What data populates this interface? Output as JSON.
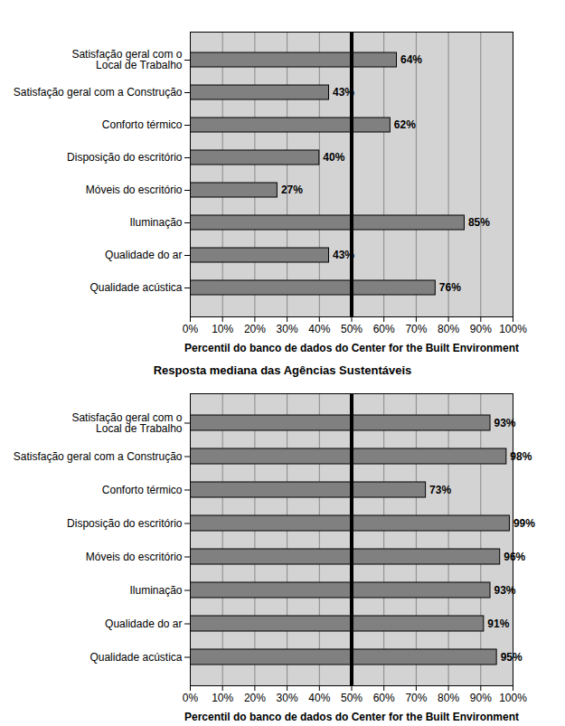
{
  "chart_data": [
    {
      "type": "bar",
      "orientation": "horizontal",
      "categories": [
        "Satisfação geral com o\nLocal de Trabalho",
        "Satisfação geral com a Construção",
        "Conforto térmico",
        "Disposição do escritório",
        "Móveis do escritório",
        "Iluminação",
        "Qualidade do ar",
        "Qualidade acústica"
      ],
      "values": [
        64,
        43,
        62,
        40,
        27,
        85,
        43,
        76
      ],
      "value_labels": [
        "64%",
        "43%",
        "62%",
        "40%",
        "27%",
        "85%",
        "43%",
        "76%"
      ],
      "data_labels": true,
      "color": "#808080",
      "x_label": "Percentil do banco de dados do Center for the Built Environment",
      "xlim": [
        0,
        100
      ],
      "xticks": [
        {
          "value": 0,
          "label": "0%"
        },
        {
          "value": 10,
          "label": "10%"
        },
        {
          "value": 20,
          "label": "20%"
        },
        {
          "value": 30,
          "label": "30%"
        },
        {
          "value": 40,
          "label": "40%"
        },
        {
          "value": 50,
          "label": "50%"
        },
        {
          "value": 60,
          "label": "60%"
        },
        {
          "value": 70,
          "label": "70%"
        },
        {
          "value": 80,
          "label": "80%"
        },
        {
          "value": 90,
          "label": "90%"
        },
        {
          "value": 100,
          "label": "100%"
        }
      ],
      "grid": true,
      "reference_line": 50
    },
    {
      "type": "bar",
      "orientation": "horizontal",
      "title": "Resposta mediana das Agências Sustentáveis",
      "categories": [
        "Satisfação geral com o\nLocal de Trabalho",
        "Satisfação geral com a Construção",
        "Conforto térmico",
        "Disposição do escritório",
        "Móveis do escritório",
        "Iluminação",
        "Qualidade do ar",
        "Qualidade acústica"
      ],
      "values": [
        93,
        98,
        73,
        99,
        96,
        93,
        91,
        95
      ],
      "value_labels": [
        "93%",
        "98%",
        "73%",
        "99%",
        "96%",
        "93%",
        "91%",
        "95%"
      ],
      "data_labels": true,
      "color": "#808080",
      "x_label": "Percentil do banco de dados do Center for the Built Environment",
      "xlim": [
        0,
        100
      ],
      "xticks": [
        {
          "value": 0,
          "label": "0%"
        },
        {
          "value": 10,
          "label": "10%"
        },
        {
          "value": 20,
          "label": "20%"
        },
        {
          "value": 30,
          "label": "30%"
        },
        {
          "value": 40,
          "label": "40%"
        },
        {
          "value": 50,
          "label": "50%"
        },
        {
          "value": 60,
          "label": "60%"
        },
        {
          "value": 70,
          "label": "70%"
        },
        {
          "value": 80,
          "label": "80%"
        },
        {
          "value": 90,
          "label": "90%"
        },
        {
          "value": 100,
          "label": "100%"
        }
      ],
      "grid": true,
      "reference_line": 50
    }
  ]
}
